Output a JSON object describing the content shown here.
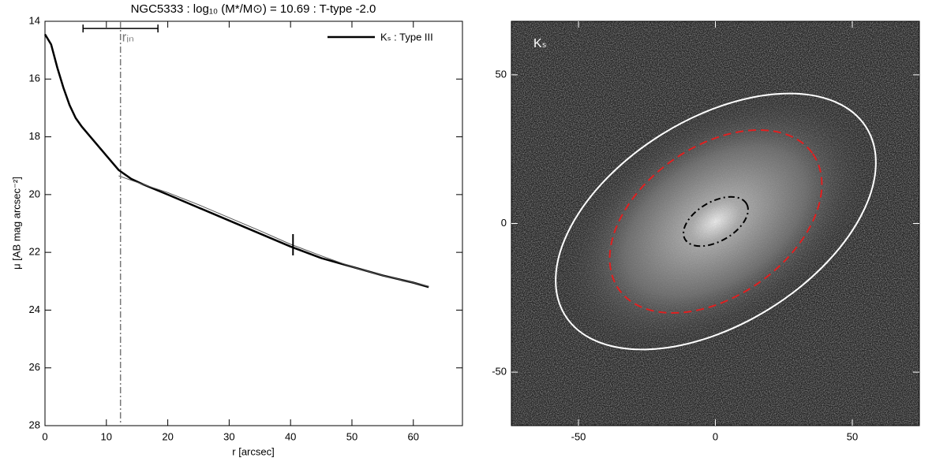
{
  "chart_data": [
    {
      "type": "line",
      "title": "NGC5333 : log₁₀ (M*/M⊙) = 10.69 : T-type -2.0",
      "xlabel": "r [arcsec]",
      "ylabel": "μ [AB mag arcsec⁻²]",
      "xlim": [
        0,
        68
      ],
      "ylim": [
        28,
        14
      ],
      "xticks": [
        0,
        10,
        20,
        30,
        40,
        50,
        60
      ],
      "yticks": [
        14,
        16,
        18,
        20,
        22,
        24,
        26,
        28
      ],
      "legend": "upper right",
      "x": [
        0,
        1,
        2,
        3,
        4,
        5,
        6,
        8,
        10,
        12,
        14,
        16,
        20,
        25,
        30,
        35,
        40,
        45,
        50,
        55,
        60,
        62.5
      ],
      "series": [
        {
          "name": "Kₛ : Type III",
          "color": "#000000",
          "values": [
            14.45,
            14.8,
            15.6,
            16.3,
            16.9,
            17.35,
            17.65,
            18.15,
            18.65,
            19.15,
            19.45,
            19.65,
            20.0,
            20.45,
            20.9,
            21.35,
            21.8,
            22.2,
            22.5,
            22.8,
            23.05,
            23.2
          ]
        },
        {
          "color": "#555555",
          "values": [
            null,
            null,
            null,
            null,
            null,
            null,
            null,
            null,
            null,
            19.35,
            19.5,
            19.65,
            19.93,
            20.35,
            20.8,
            21.25,
            21.72,
            22.12,
            22.5,
            22.8,
            23.05,
            23.18
          ]
        }
      ],
      "annotations": [
        {
          "text": "rᵢₙ",
          "x": 12.3,
          "range": [
            6.2,
            18.4
          ],
          "y": 14.25
        }
      ],
      "break": 40.4
    },
    {
      "type": "image",
      "label": "Kₛ",
      "xlim": [
        -74.5,
        74.5
      ],
      "ylim": [
        -68,
        68
      ],
      "xticks": [
        -50,
        0,
        50
      ],
      "yticks": [
        -50,
        0,
        50
      ]
    }
  ]
}
